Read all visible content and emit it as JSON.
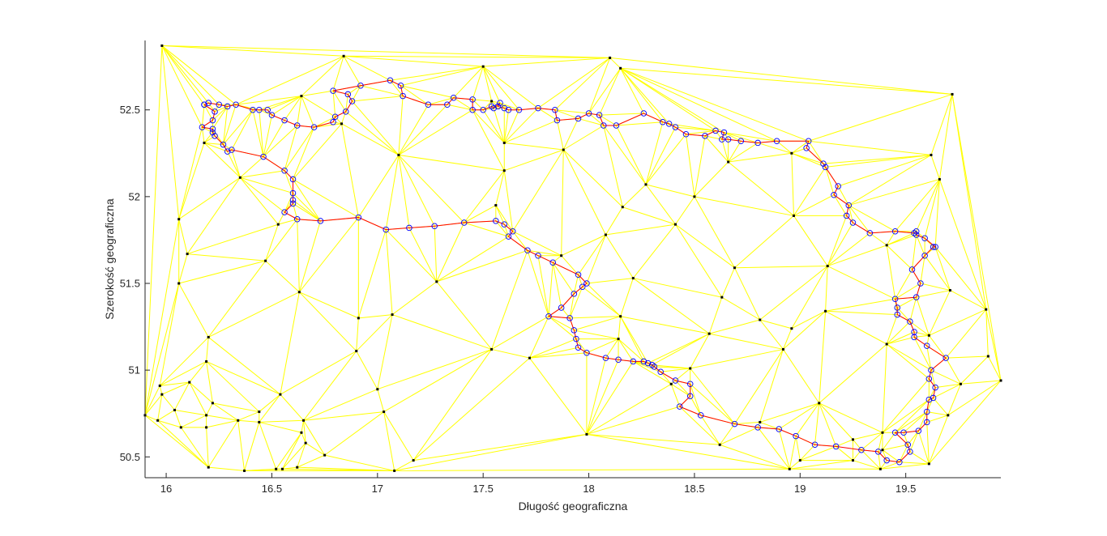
{
  "chart_data": {
    "type": "scatter",
    "xlabel": "Długość geograficzna",
    "ylabel": "Szerokość geograficzna",
    "xlim": [
      15.9,
      19.95
    ],
    "ylim": [
      50.38,
      52.9
    ],
    "xticks": [
      16,
      16.5,
      17,
      17.5,
      18,
      18.5,
      19,
      19.5
    ],
    "yticks": [
      50.5,
      51,
      51.5,
      52,
      52.5
    ],
    "xtick_labels": [
      "16",
      "16.5",
      "17",
      "17.5",
      "18",
      "18.5",
      "19",
      "19.5"
    ],
    "ytick_labels": [
      "50.5",
      "51",
      "51.5",
      "52",
      "52.5"
    ],
    "grid": false,
    "colors": {
      "mesh": "#ffff00",
      "boundary": "#ff0000",
      "boundary_points": "#0000ff",
      "nodes": "#000000",
      "axis": "#262626"
    },
    "triangulation_nodes": [
      [
        15.98,
        52.87
      ],
      [
        16.84,
        52.81
      ],
      [
        18.1,
        52.8
      ],
      [
        17.5,
        52.75
      ],
      [
        18.15,
        52.74
      ],
      [
        19.72,
        52.59
      ],
      [
        16.64,
        52.58
      ],
      [
        17.54,
        52.55
      ],
      [
        16.83,
        52.42
      ],
      [
        16.18,
        52.31
      ],
      [
        17.1,
        52.24
      ],
      [
        17.6,
        52.31
      ],
      [
        17.88,
        52.27
      ],
      [
        18.66,
        52.2
      ],
      [
        18.96,
        52.25
      ],
      [
        19.62,
        52.24
      ],
      [
        16.35,
        52.11
      ],
      [
        17.6,
        52.15
      ],
      [
        18.27,
        52.07
      ],
      [
        19.66,
        52.1
      ],
      [
        16.06,
        51.87
      ],
      [
        17.56,
        51.95
      ],
      [
        18.16,
        51.94
      ],
      [
        18.5,
        52.0
      ],
      [
        18.97,
        51.89
      ],
      [
        16.53,
        51.84
      ],
      [
        18.08,
        51.78
      ],
      [
        18.41,
        51.84
      ],
      [
        19.41,
        51.72
      ],
      [
        16.1,
        51.67
      ],
      [
        16.47,
        51.63
      ],
      [
        17.87,
        51.66
      ],
      [
        18.69,
        51.59
      ],
      [
        19.13,
        51.6
      ],
      [
        16.06,
        51.5
      ],
      [
        17.28,
        51.51
      ],
      [
        18.21,
        51.53
      ],
      [
        16.63,
        51.45
      ],
      [
        18.63,
        51.42
      ],
      [
        19.71,
        51.46
      ],
      [
        17.07,
        51.32
      ],
      [
        16.91,
        51.3
      ],
      [
        18.15,
        51.31
      ],
      [
        18.81,
        51.29
      ],
      [
        19.12,
        51.34
      ],
      [
        19.88,
        51.35
      ],
      [
        16.2,
        51.19
      ],
      [
        18.57,
        51.21
      ],
      [
        18.96,
        51.24
      ],
      [
        19.61,
        51.2
      ],
      [
        18.14,
        51.18
      ],
      [
        17.54,
        51.12
      ],
      [
        17.72,
        51.07
      ],
      [
        18.92,
        51.12
      ],
      [
        19.41,
        51.15
      ],
      [
        16.9,
        51.11
      ],
      [
        16.19,
        51.05
      ],
      [
        18.48,
        51.01
      ],
      [
        19.89,
        51.08
      ],
      [
        15.97,
        50.91
      ],
      [
        16.11,
        50.93
      ],
      [
        17.0,
        50.89
      ],
      [
        18.39,
        50.92
      ],
      [
        19.76,
        50.92
      ],
      [
        19.95,
        50.94
      ],
      [
        15.98,
        50.86
      ],
      [
        16.54,
        50.86
      ],
      [
        19.09,
        50.81
      ],
      [
        16.04,
        50.77
      ],
      [
        16.22,
        50.81
      ],
      [
        16.44,
        50.76
      ],
      [
        17.03,
        50.76
      ],
      [
        15.9,
        50.74
      ],
      [
        16.19,
        50.74
      ],
      [
        16.65,
        50.71
      ],
      [
        18.81,
        50.7
      ],
      [
        19.7,
        50.74
      ],
      [
        15.96,
        50.71
      ],
      [
        16.34,
        50.71
      ],
      [
        16.44,
        50.7
      ],
      [
        16.07,
        50.67
      ],
      [
        16.19,
        50.67
      ],
      [
        17.99,
        50.63
      ],
      [
        19.25,
        50.6
      ],
      [
        16.64,
        50.64
      ],
      [
        16.66,
        50.58
      ],
      [
        19.39,
        50.64
      ],
      [
        18.62,
        50.57
      ],
      [
        16.75,
        50.51
      ],
      [
        19.39,
        50.54
      ],
      [
        17.17,
        50.48
      ],
      [
        19.0,
        50.48
      ],
      [
        19.25,
        50.48
      ],
      [
        19.61,
        50.46
      ],
      [
        16.2,
        50.44
      ],
      [
        16.62,
        50.44
      ],
      [
        16.55,
        50.43
      ],
      [
        16.52,
        50.43
      ],
      [
        16.37,
        50.42
      ],
      [
        17.08,
        50.42
      ],
      [
        18.95,
        50.43
      ],
      [
        19.38,
        50.43
      ]
    ],
    "boundary_points": [
      [
        16.18,
        52.53
      ],
      [
        16.2,
        52.54
      ],
      [
        16.25,
        52.53
      ],
      [
        16.29,
        52.52
      ],
      [
        16.33,
        52.53
      ],
      [
        16.41,
        52.5
      ],
      [
        16.44,
        52.5
      ],
      [
        16.48,
        52.5
      ],
      [
        16.5,
        52.47
      ],
      [
        16.56,
        52.44
      ],
      [
        16.62,
        52.41
      ],
      [
        16.7,
        52.4
      ],
      [
        16.79,
        52.43
      ],
      [
        16.8,
        52.46
      ],
      [
        16.85,
        52.49
      ],
      [
        16.88,
        52.55
      ],
      [
        16.86,
        52.59
      ],
      [
        16.79,
        52.61
      ],
      [
        16.92,
        52.64
      ],
      [
        17.06,
        52.67
      ],
      [
        17.11,
        52.64
      ],
      [
        17.12,
        52.58
      ],
      [
        17.24,
        52.53
      ],
      [
        17.33,
        52.53
      ],
      [
        17.36,
        52.57
      ],
      [
        17.45,
        52.56
      ],
      [
        17.45,
        52.5
      ],
      [
        17.5,
        52.5
      ],
      [
        17.54,
        52.52
      ],
      [
        17.55,
        52.51
      ],
      [
        17.58,
        52.54
      ],
      [
        17.57,
        52.52
      ],
      [
        17.6,
        52.51
      ],
      [
        17.62,
        52.5
      ],
      [
        17.67,
        52.5
      ],
      [
        17.76,
        52.51
      ],
      [
        17.84,
        52.5
      ],
      [
        17.85,
        52.44
      ],
      [
        17.95,
        52.45
      ],
      [
        18.0,
        52.48
      ],
      [
        18.05,
        52.47
      ],
      [
        18.07,
        52.41
      ],
      [
        18.13,
        52.41
      ],
      [
        18.26,
        52.48
      ],
      [
        18.35,
        52.43
      ],
      [
        18.38,
        52.42
      ],
      [
        18.41,
        52.4
      ],
      [
        18.46,
        52.36
      ],
      [
        18.55,
        52.35
      ],
      [
        18.6,
        52.38
      ],
      [
        18.64,
        52.37
      ],
      [
        18.63,
        52.33
      ],
      [
        18.66,
        52.33
      ],
      [
        18.72,
        52.32
      ],
      [
        18.8,
        52.31
      ],
      [
        18.89,
        52.32
      ],
      [
        19.04,
        52.32
      ],
      [
        19.03,
        52.28
      ],
      [
        19.11,
        52.19
      ],
      [
        19.12,
        52.17
      ],
      [
        19.18,
        52.06
      ],
      [
        19.16,
        52.01
      ],
      [
        19.23,
        51.95
      ],
      [
        19.22,
        51.89
      ],
      [
        19.25,
        51.85
      ],
      [
        19.33,
        51.79
      ],
      [
        19.45,
        51.8
      ],
      [
        19.54,
        51.79
      ],
      [
        19.55,
        51.8
      ],
      [
        19.55,
        51.78
      ],
      [
        19.59,
        51.76
      ],
      [
        19.64,
        51.71
      ],
      [
        19.63,
        51.71
      ],
      [
        19.59,
        51.66
      ],
      [
        19.53,
        51.58
      ],
      [
        19.57,
        51.5
      ],
      [
        19.55,
        51.42
      ],
      [
        19.45,
        51.41
      ],
      [
        19.46,
        51.36
      ],
      [
        19.46,
        51.32
      ],
      [
        19.52,
        51.28
      ],
      [
        19.54,
        51.22
      ],
      [
        19.54,
        51.19
      ],
      [
        19.6,
        51.14
      ],
      [
        19.69,
        51.07
      ],
      [
        19.62,
        51.0
      ],
      [
        19.61,
        50.95
      ],
      [
        19.64,
        50.9
      ],
      [
        19.63,
        50.84
      ],
      [
        19.61,
        50.83
      ],
      [
        19.6,
        50.76
      ],
      [
        19.6,
        50.7
      ],
      [
        19.56,
        50.65
      ],
      [
        19.49,
        50.64
      ],
      [
        19.45,
        50.64
      ],
      [
        19.51,
        50.57
      ],
      [
        19.52,
        50.53
      ],
      [
        19.47,
        50.47
      ],
      [
        19.41,
        50.48
      ],
      [
        19.37,
        50.53
      ],
      [
        19.29,
        50.54
      ],
      [
        19.17,
        50.56
      ],
      [
        19.07,
        50.57
      ],
      [
        18.98,
        50.62
      ],
      [
        18.9,
        50.66
      ],
      [
        18.8,
        50.67
      ],
      [
        18.69,
        50.69
      ],
      [
        18.53,
        50.74
      ],
      [
        18.43,
        50.79
      ],
      [
        18.48,
        50.85
      ],
      [
        18.48,
        50.92
      ],
      [
        18.41,
        50.94
      ],
      [
        18.34,
        50.99
      ],
      [
        18.31,
        51.02
      ],
      [
        18.3,
        51.03
      ],
      [
        18.28,
        51.04
      ],
      [
        18.26,
        51.05
      ],
      [
        18.21,
        51.05
      ],
      [
        18.14,
        51.06
      ],
      [
        18.08,
        51.07
      ],
      [
        17.99,
        51.1
      ],
      [
        17.95,
        51.13
      ],
      [
        17.94,
        51.18
      ],
      [
        17.93,
        51.23
      ],
      [
        17.91,
        51.3
      ],
      [
        17.81,
        51.31
      ],
      [
        17.87,
        51.36
      ],
      [
        17.93,
        51.44
      ],
      [
        17.97,
        51.48
      ],
      [
        17.99,
        51.5
      ],
      [
        17.95,
        51.55
      ],
      [
        17.83,
        51.62
      ],
      [
        17.76,
        51.66
      ],
      [
        17.71,
        51.69
      ],
      [
        17.62,
        51.77
      ],
      [
        17.64,
        51.8
      ],
      [
        17.6,
        51.84
      ],
      [
        17.56,
        51.86
      ],
      [
        17.41,
        51.85
      ],
      [
        17.27,
        51.83
      ],
      [
        17.15,
        51.82
      ],
      [
        17.04,
        51.81
      ],
      [
        16.91,
        51.88
      ],
      [
        16.73,
        51.86
      ],
      [
        16.62,
        51.87
      ],
      [
        16.56,
        51.91
      ],
      [
        16.6,
        51.96
      ],
      [
        16.6,
        51.98
      ],
      [
        16.6,
        52.02
      ],
      [
        16.6,
        52.1
      ],
      [
        16.56,
        52.15
      ],
      [
        16.46,
        52.23
      ],
      [
        16.31,
        52.27
      ],
      [
        16.29,
        52.26
      ],
      [
        16.27,
        52.3
      ],
      [
        16.23,
        52.35
      ],
      [
        16.22,
        52.37
      ],
      [
        16.22,
        52.39
      ],
      [
        16.17,
        52.4
      ],
      [
        16.22,
        52.44
      ],
      [
        16.23,
        52.49
      ],
      [
        16.18,
        52.53
      ]
    ]
  }
}
